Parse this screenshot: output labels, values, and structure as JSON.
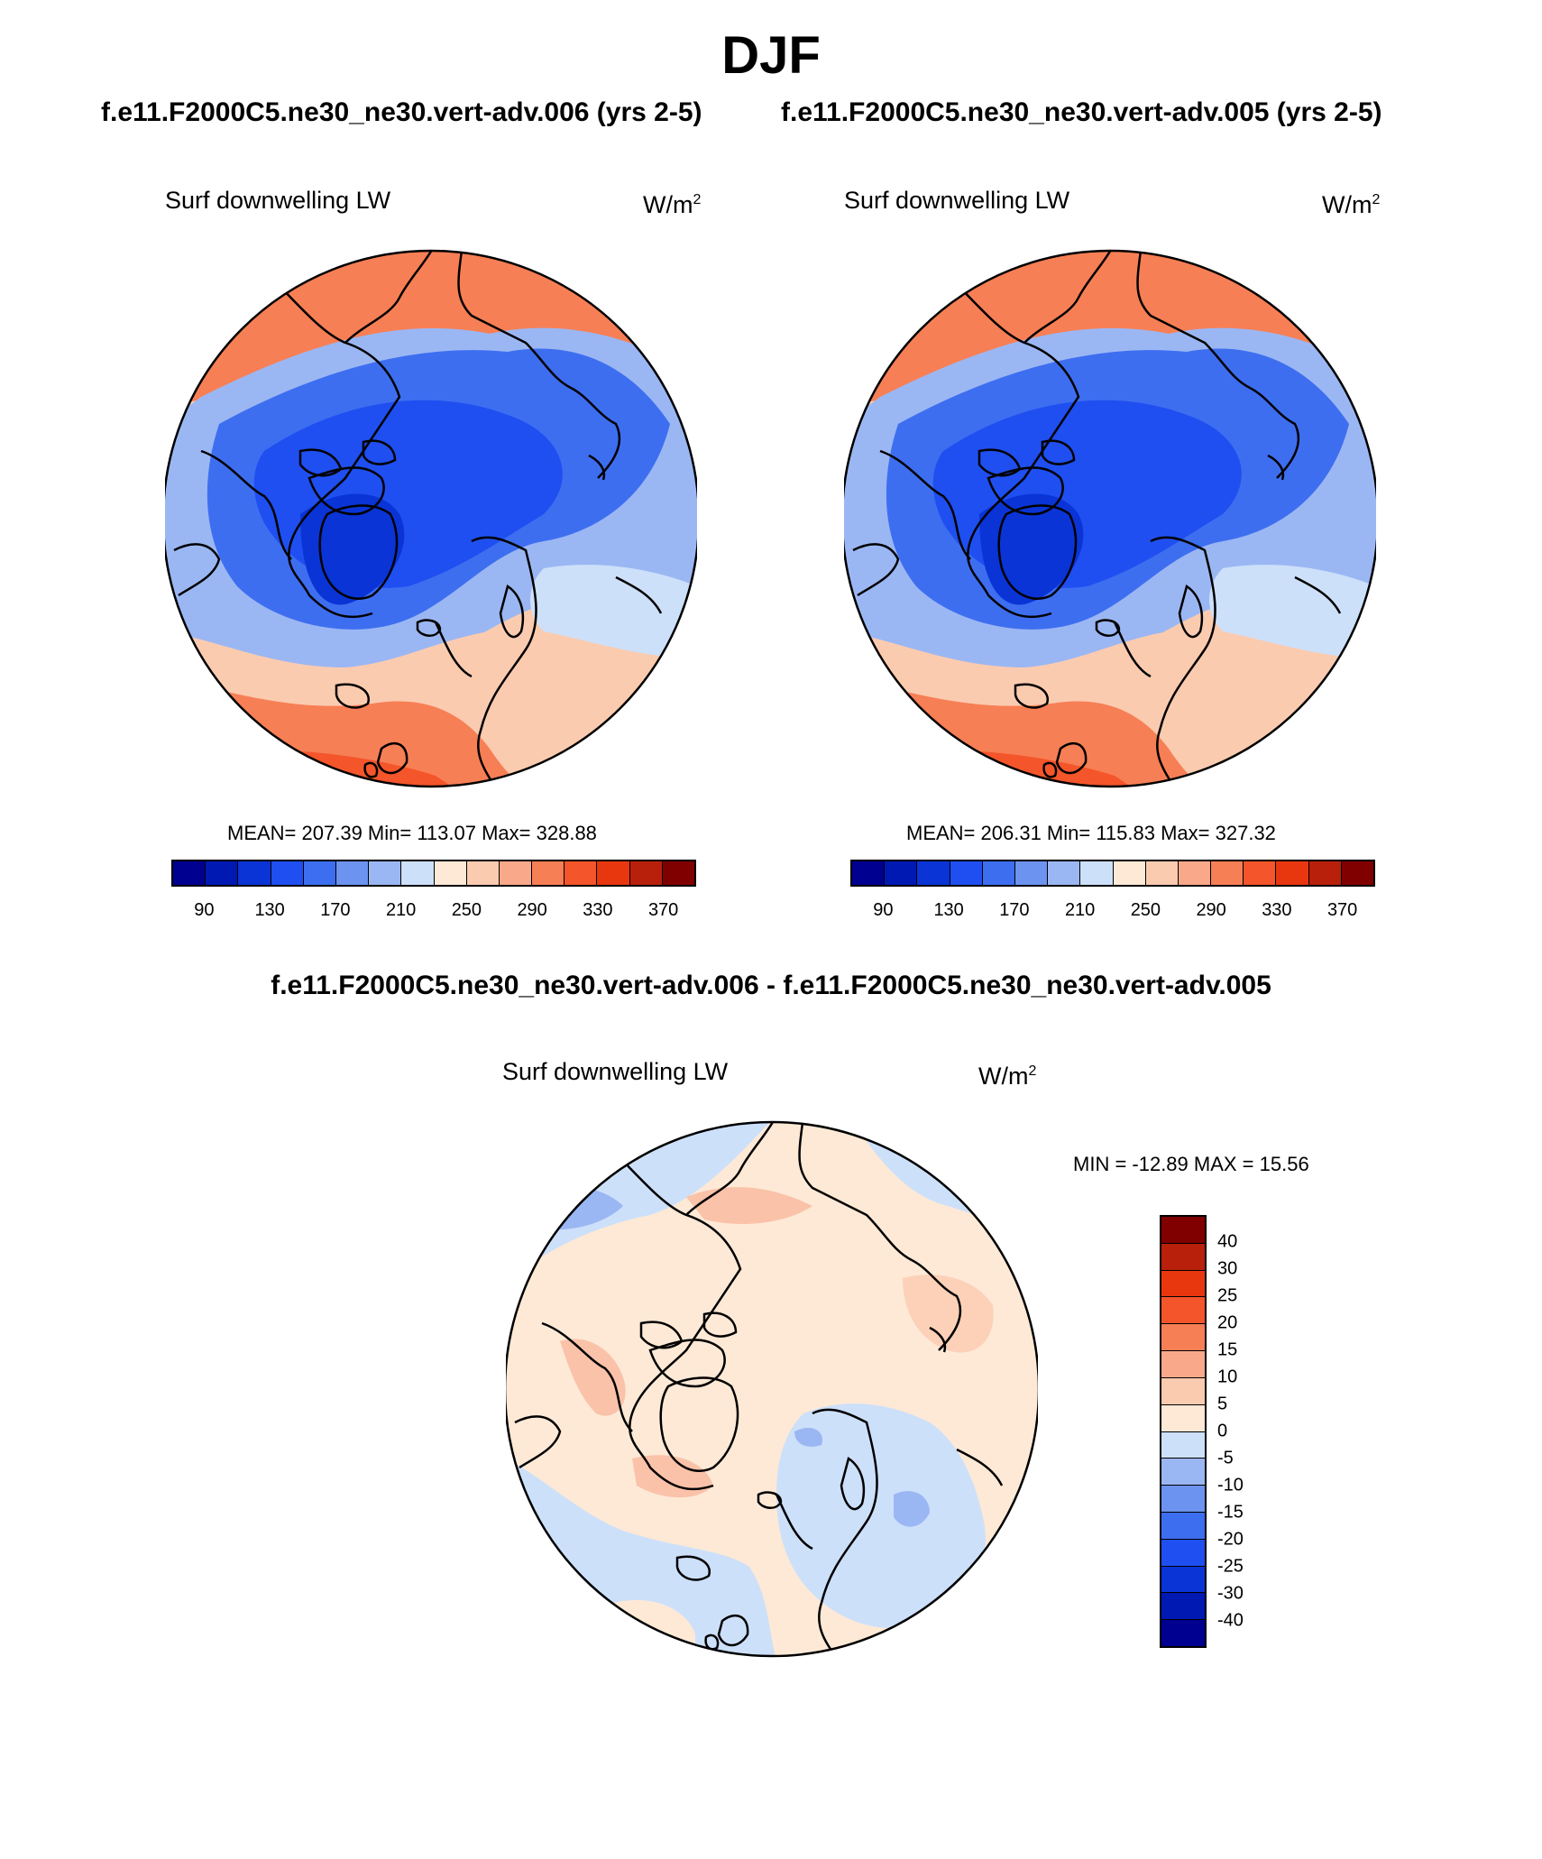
{
  "page": {
    "title": "DJF",
    "case_left": "f.e11.F2000C5.ne30_ne30.vert-adv.006 (yrs 2-5)",
    "case_right": "f.e11.F2000C5.ne30_ne30.vert-adv.005 (yrs 2-5)",
    "diff_title": "f.e11.F2000C5.ne30_ne30.vert-adv.006 - f.e11.F2000C5.ne30_ne30.vert-adv.005"
  },
  "panels": {
    "left": {
      "variable": "Surf downwelling LW",
      "units_base": "W/m",
      "units_exp": "2",
      "stats": "MEAN= 207.39  Min= 113.07  Max= 328.88"
    },
    "right": {
      "variable": "Surf downwelling LW",
      "units_base": "W/m",
      "units_exp": "2",
      "stats": "MEAN= 206.31  Min= 115.83  Max= 327.32"
    },
    "diff": {
      "variable": "Surf downwelling LW",
      "units_base": "W/m",
      "units_exp": "2",
      "stats": "MIN = -12.89 MAX =  15.56"
    }
  },
  "colorbar_abs": {
    "tick_labels": [
      "90",
      "130",
      "170",
      "210",
      "250",
      "290",
      "330",
      "370"
    ],
    "colors": [
      "#000090",
      "#0019b3",
      "#0a34d6",
      "#1f4ff0",
      "#3e6ef0",
      "#6d93f0",
      "#9bb7f3",
      "#cde0fa",
      "#fde9d6",
      "#fbcbb0",
      "#f9a98a",
      "#f77f55",
      "#f4552a",
      "#e8370f",
      "#b8200b",
      "#800000"
    ]
  },
  "colorbar_diff": {
    "tick_labels": [
      "40",
      "30",
      "25",
      "20",
      "15",
      "10",
      "5",
      "0",
      "-5",
      "-10",
      "-15",
      "-20",
      "-25",
      "-30",
      "-40"
    ],
    "colors": [
      "#800000",
      "#b8200b",
      "#e8370f",
      "#f4552a",
      "#f77f55",
      "#f9a98a",
      "#fbcbb0",
      "#fde9d6",
      "#cde0fa",
      "#9bb7f3",
      "#6d93f0",
      "#3e6ef0",
      "#1f4ff0",
      "#0a34d6",
      "#0019b3",
      "#000090"
    ]
  },
  "colors": {
    "coastline": "#000000",
    "background": "#ffffff"
  }
}
